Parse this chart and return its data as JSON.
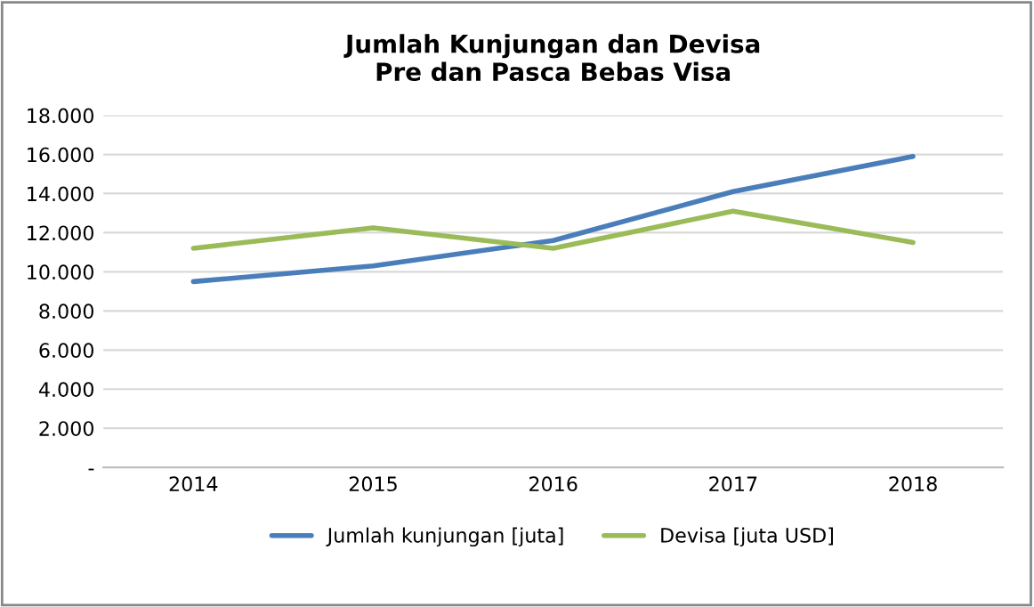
{
  "chart_data": {
    "type": "line",
    "title": "Jumlah Kunjungan dan Devisa\nPre dan Pasca Bebas Visa",
    "categories": [
      "2014",
      "2015",
      "2016",
      "2017",
      "2018"
    ],
    "series": [
      {
        "name": "Jumlah kunjungan [juta]",
        "color": "#4a7ebb",
        "values": [
          9500,
          10300,
          11600,
          14100,
          15900
        ]
      },
      {
        "name": "Devisa [juta USD]",
        "color": "#9bbb59",
        "values": [
          11200,
          12250,
          11200,
          13100,
          11500
        ]
      }
    ],
    "ylim": [
      0,
      18000
    ],
    "yticks": [
      {
        "value": 0,
        "label": "-"
      },
      {
        "value": 2000,
        "label": "2.000"
      },
      {
        "value": 4000,
        "label": "4.000"
      },
      {
        "value": 6000,
        "label": "6.000"
      },
      {
        "value": 8000,
        "label": "8.000"
      },
      {
        "value": 10000,
        "label": "10.000"
      },
      {
        "value": 12000,
        "label": "12.000"
      },
      {
        "value": 14000,
        "label": "14.000"
      },
      {
        "value": 16000,
        "label": "16.000"
      },
      {
        "value": 18000,
        "label": "18.000"
      }
    ],
    "grid": "y",
    "legend": "bottom",
    "marker": "none",
    "line_style": "solid"
  }
}
